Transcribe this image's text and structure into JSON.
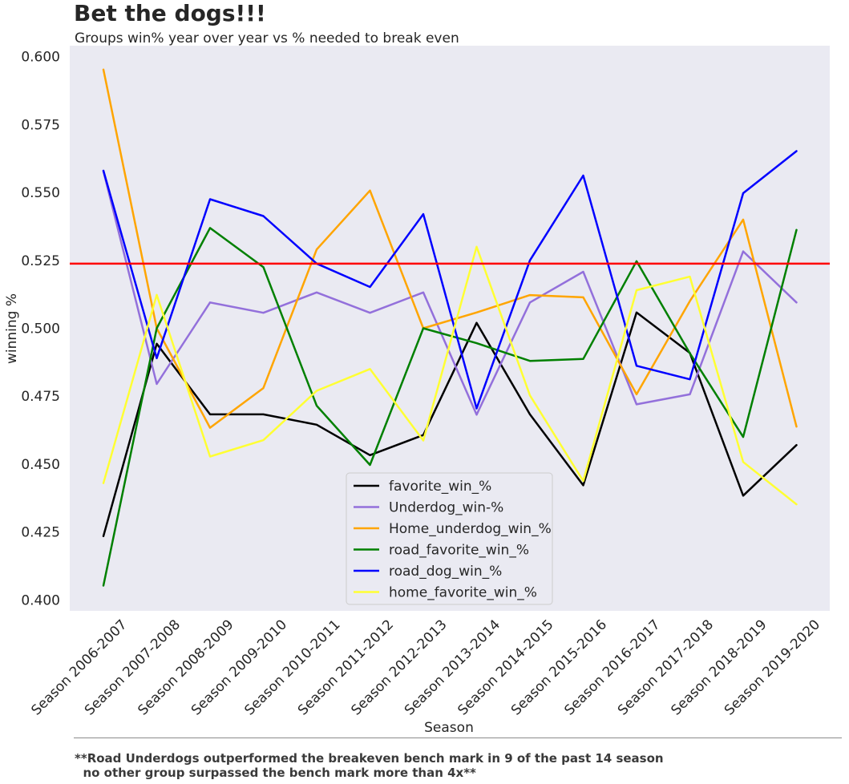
{
  "title": "Bet the dogs!!!",
  "subtitle": "Groups win% year over year vs % needed to break even",
  "footnote": "**Road Underdogs outperformed the breakeven bench mark in 9 of the past 14 season\n  no other group surpassed the bench mark more than 4x**",
  "chart_data": {
    "type": "line",
    "xlabel": "Season",
    "ylabel": "winning %",
    "ylim": [
      0.396,
      0.604
    ],
    "yticks": [
      0.4,
      0.425,
      0.45,
      0.475,
      0.5,
      0.525,
      0.55,
      0.575,
      0.6
    ],
    "ytick_labels": [
      "0.400",
      "0.425",
      "0.450",
      "0.475",
      "0.500",
      "0.525",
      "0.550",
      "0.575",
      "0.600"
    ],
    "categories": [
      "Season 2006-2007",
      "Season 2007-2008",
      "Season 2008-2009",
      "Season 2009-2010",
      "Season 2010-2011",
      "Season 2011-2012",
      "Season 2012-2013",
      "Season 2013-2014",
      "Season 2014-2015",
      "Season 2015-2016",
      "Season 2016-2017",
      "Season 2017-2018",
      "Season 2018-2019",
      "Season 2019-2020"
    ],
    "reference_line": {
      "value": 0.5238,
      "color": "#ff0000"
    },
    "grid": false,
    "legend_position": "lower center",
    "background": "#eaeaf2",
    "series": [
      {
        "name": "favorite_win_%",
        "color": "#000000",
        "values": [
          0.4235,
          0.4943,
          0.4683,
          0.4683,
          0.4645,
          0.4533,
          0.4607,
          0.502,
          0.4683,
          0.4422,
          0.5058,
          0.4909,
          0.4384,
          0.457
        ]
      },
      {
        "name": "Underdog_win-%",
        "color": "#9370db",
        "values": [
          0.5578,
          0.4795,
          0.5095,
          0.5057,
          0.5132,
          0.5057,
          0.5132,
          0.4682,
          0.5095,
          0.5208,
          0.472,
          0.4757,
          0.5283,
          0.5095
        ]
      },
      {
        "name": "Home_underdog_win_%",
        "color": "#ffa500",
        "values": [
          0.5952,
          0.5,
          0.4634,
          0.478,
          0.529,
          0.5507,
          0.5,
          0.5058,
          0.5122,
          0.5114,
          0.4757,
          0.51,
          0.54,
          0.4638
        ]
      },
      {
        "name": "road_favorite_win_%",
        "color": "#008000",
        "values": [
          0.4053,
          0.5,
          0.5369,
          0.5225,
          0.4715,
          0.4497,
          0.5,
          0.4945,
          0.488,
          0.4887,
          0.5247,
          0.4908,
          0.46,
          0.5362
        ]
      },
      {
        "name": "road_dog_win_%",
        "color": "#0000ff",
        "values": [
          0.558,
          0.489,
          0.5475,
          0.5413,
          0.5238,
          0.5152,
          0.542,
          0.4705,
          0.525,
          0.5562,
          0.4862,
          0.4812,
          0.5497,
          0.5652
        ]
      },
      {
        "name": "home_favorite_win_%",
        "color": "#ffff33",
        "values": [
          0.443,
          0.5123,
          0.4528,
          0.4588,
          0.477,
          0.485,
          0.4587,
          0.53,
          0.4753,
          0.4438,
          0.514,
          0.519,
          0.4508,
          0.4352
        ]
      }
    ]
  }
}
